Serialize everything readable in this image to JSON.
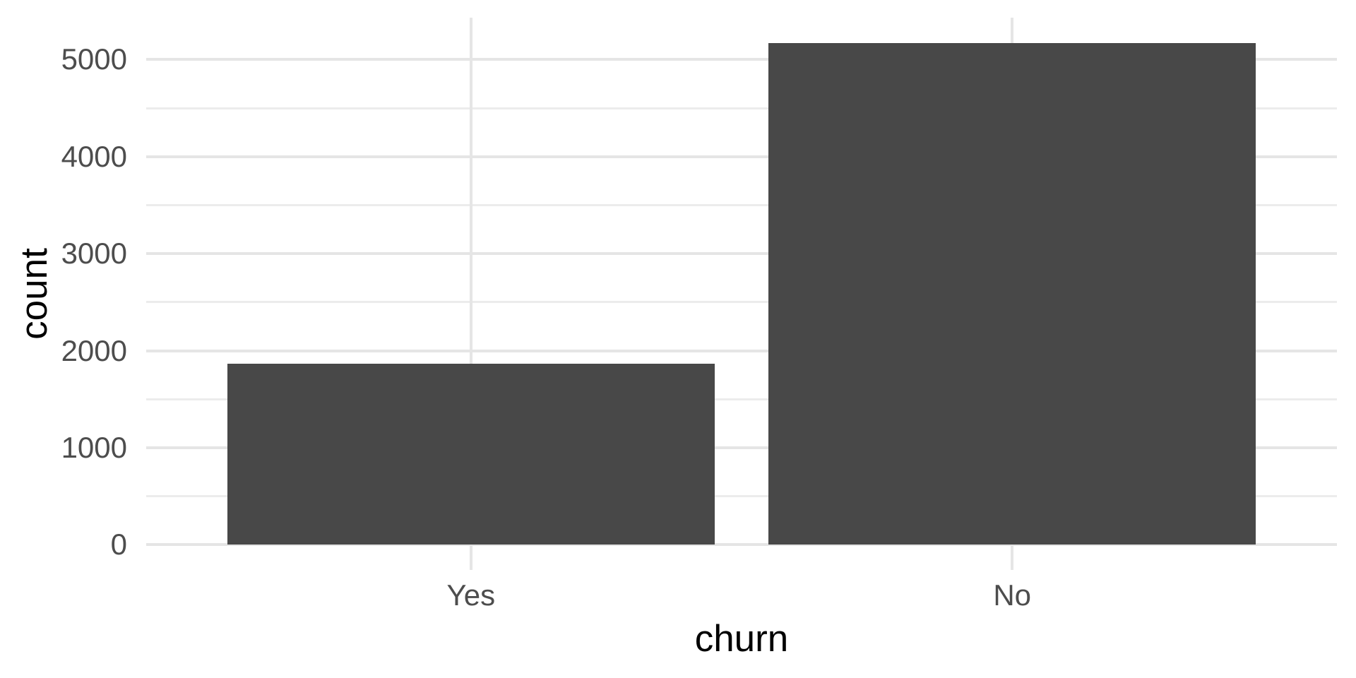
{
  "chart_data": {
    "type": "bar",
    "title": "",
    "xlabel": "churn",
    "ylabel": "count",
    "categories": [
      "Yes",
      "No"
    ],
    "values": [
      1869,
      5174
    ],
    "x_tick_labels": [
      "Yes",
      "No"
    ],
    "y_ticks_major": [
      0,
      1000,
      2000,
      3000,
      4000,
      5000
    ],
    "y_tick_labels": [
      "0",
      "1000",
      "2000",
      "3000",
      "4000",
      "5000"
    ],
    "y_ticks_minor": [
      500,
      1500,
      2500,
      3500,
      4500
    ],
    "ylim": [
      0,
      5433
    ],
    "bar_rel_width": 0.9,
    "grid": "horizontal major+minor lines; vertical major lines at category centers",
    "legend": "none",
    "style": "ggplot2 theme_minimal",
    "colors": {
      "background": "#FFFFFF",
      "grid_major": "#E5E5E5",
      "grid_minor": "#ECECEC",
      "axis_text": "#4D4D4D",
      "axis_title": "#000000",
      "bar": "#484848"
    }
  }
}
